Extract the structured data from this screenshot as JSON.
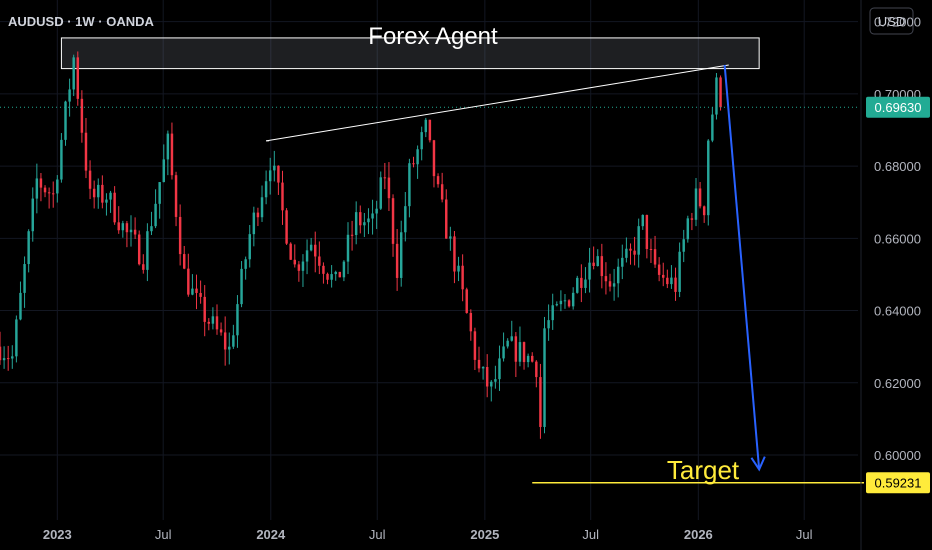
{
  "chart_data": {
    "type": "candlestick",
    "symbol_label": "AUDUSD · 1W · OANDA",
    "title": "Forex Agent",
    "currency_label": "USD",
    "ylim": [
      0.582,
      0.726
    ],
    "y_ticks": [
      "0.72000",
      "0.70000",
      "0.68000",
      "0.66000",
      "0.64000",
      "0.62000",
      "0.60000"
    ],
    "y_tick_values": [
      0.72,
      0.7,
      0.68,
      0.66,
      0.64,
      0.62,
      0.6
    ],
    "x_ticks": [
      {
        "label": "2023",
        "date": "2023-01-01",
        "major": true
      },
      {
        "label": "Jul",
        "date": "2023-07-01",
        "major": false
      },
      {
        "label": "2024",
        "date": "2024-01-01",
        "major": true
      },
      {
        "label": "Jul",
        "date": "2024-07-01",
        "major": false
      },
      {
        "label": "2025",
        "date": "2025-01-01",
        "major": true
      },
      {
        "label": "Jul",
        "date": "2025-07-01",
        "major": false
      },
      {
        "label": "2026",
        "date": "2026-01-01",
        "major": true
      },
      {
        "label": "Jul",
        "date": "2026-07-01",
        "major": false
      }
    ],
    "x_range": [
      "2022-09-25",
      "2026-10-01"
    ],
    "current_price": {
      "label": "0.69630",
      "value": 0.6963
    },
    "target_price": {
      "label": "0.59231",
      "value": 0.59231
    },
    "target_label": "Target",
    "colors": {
      "up": "#26a69a",
      "down": "#f23645",
      "arrow": "#2962ff",
      "target": "#ffeb3b",
      "current": "#22ab94",
      "trendline": "#ffffff"
    },
    "anchors": [
      [
        "2022-09-25",
        0.63
      ],
      [
        "2022-10-16",
        0.627
      ],
      [
        "2022-11-27",
        0.676
      ],
      [
        "2022-12-25",
        0.672
      ],
      [
        "2023-01-29",
        0.71
      ],
      [
        "2023-02-26",
        0.671
      ],
      [
        "2023-03-26",
        0.672
      ],
      [
        "2023-04-30",
        0.661
      ],
      [
        "2023-05-28",
        0.655
      ],
      [
        "2023-07-09",
        0.686
      ],
      [
        "2023-08-06",
        0.65
      ],
      [
        "2023-08-27",
        0.642
      ],
      [
        "2023-10-22",
        0.629
      ],
      [
        "2023-11-26",
        0.661
      ],
      [
        "2023-12-31",
        0.682
      ],
      [
        "2024-02-11",
        0.652
      ],
      [
        "2024-03-10",
        0.659
      ],
      [
        "2024-04-21",
        0.647
      ],
      [
        "2024-05-26",
        0.665
      ],
      [
        "2024-06-23",
        0.664
      ],
      [
        "2024-07-14",
        0.678
      ],
      [
        "2024-08-04",
        0.652
      ],
      [
        "2024-08-25",
        0.678
      ],
      [
        "2024-09-22",
        0.69
      ],
      [
        "2024-10-13",
        0.672
      ],
      [
        "2024-11-17",
        0.649
      ],
      [
        "2024-12-22",
        0.623
      ],
      [
        "2025-01-12",
        0.618
      ],
      [
        "2025-02-09",
        0.63
      ],
      [
        "2025-03-09",
        0.628
      ],
      [
        "2025-03-30",
        0.625
      ],
      [
        "2025-04-06",
        0.608
      ],
      [
        "2025-04-13",
        0.635
      ],
      [
        "2025-05-25",
        0.644
      ],
      [
        "2025-07-06",
        0.656
      ],
      [
        "2025-08-03",
        0.648
      ],
      [
        "2025-09-07",
        0.655
      ],
      [
        "2025-09-28",
        0.664
      ],
      [
        "2025-10-19",
        0.65
      ],
      [
        "2025-11-23",
        0.647
      ],
      [
        "2025-12-14",
        0.665
      ],
      [
        "2025-12-28",
        0.671
      ],
      [
        "2026-01-11",
        0.669
      ],
      [
        "2026-01-18",
        0.688
      ],
      [
        "2026-02-01",
        0.702
      ],
      [
        "2026-02-08",
        0.6963
      ]
    ],
    "zone": {
      "start": "2023-01-08",
      "end": "2026-04-15",
      "top": 0.7155,
      "bottom": 0.707
    },
    "trendline": {
      "start": [
        "2023-12-24",
        0.687
      ],
      "end": [
        "2026-02-22",
        0.708
      ]
    },
    "upper_trendline": {
      "start": [
        "2024-09-15",
        0.694
      ],
      "end": [
        "2026-02-22",
        0.708
      ]
    },
    "projection": {
      "start": [
        "2026-02-15",
        0.708
      ],
      "end": [
        "2026-04-15",
        0.596
      ]
    },
    "target_line_start": "2025-03-23"
  }
}
